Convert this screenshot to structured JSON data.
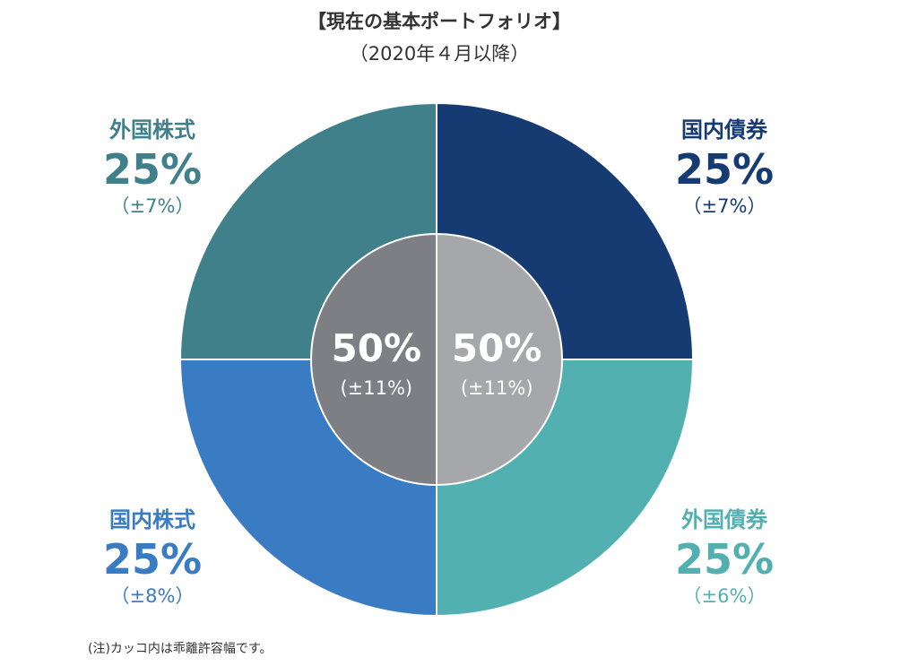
{
  "header": {
    "title": "【現在の基本ポートフォリオ】",
    "subtitle": "（2020年４月以降）"
  },
  "chart_data": {
    "type": "pie",
    "outer": [
      {
        "name": "国内債券",
        "value": 25,
        "value_label": "25%",
        "tolerance": "（±7%）",
        "color": "#163a72"
      },
      {
        "name": "外国債券",
        "value": 25,
        "value_label": "25%",
        "tolerance": "（±6%）",
        "color": "#53b0b1"
      },
      {
        "name": "国内株式",
        "value": 25,
        "value_label": "25%",
        "tolerance": "（±8%）",
        "color": "#3a7cc3"
      },
      {
        "name": "外国株式",
        "value": 25,
        "value_label": "25%",
        "tolerance": "（±7%）",
        "color": "#3f808b"
      }
    ],
    "inner": [
      {
        "value": 50,
        "value_label": "50%",
        "tolerance": "(±11%)",
        "color": "#a6a7ab"
      },
      {
        "value": 50,
        "value_label": "50%",
        "tolerance": "(±11%)",
        "color": "#7e7f84"
      }
    ]
  },
  "footnote": "(注)カッコ内は乖離許容幅です。"
}
